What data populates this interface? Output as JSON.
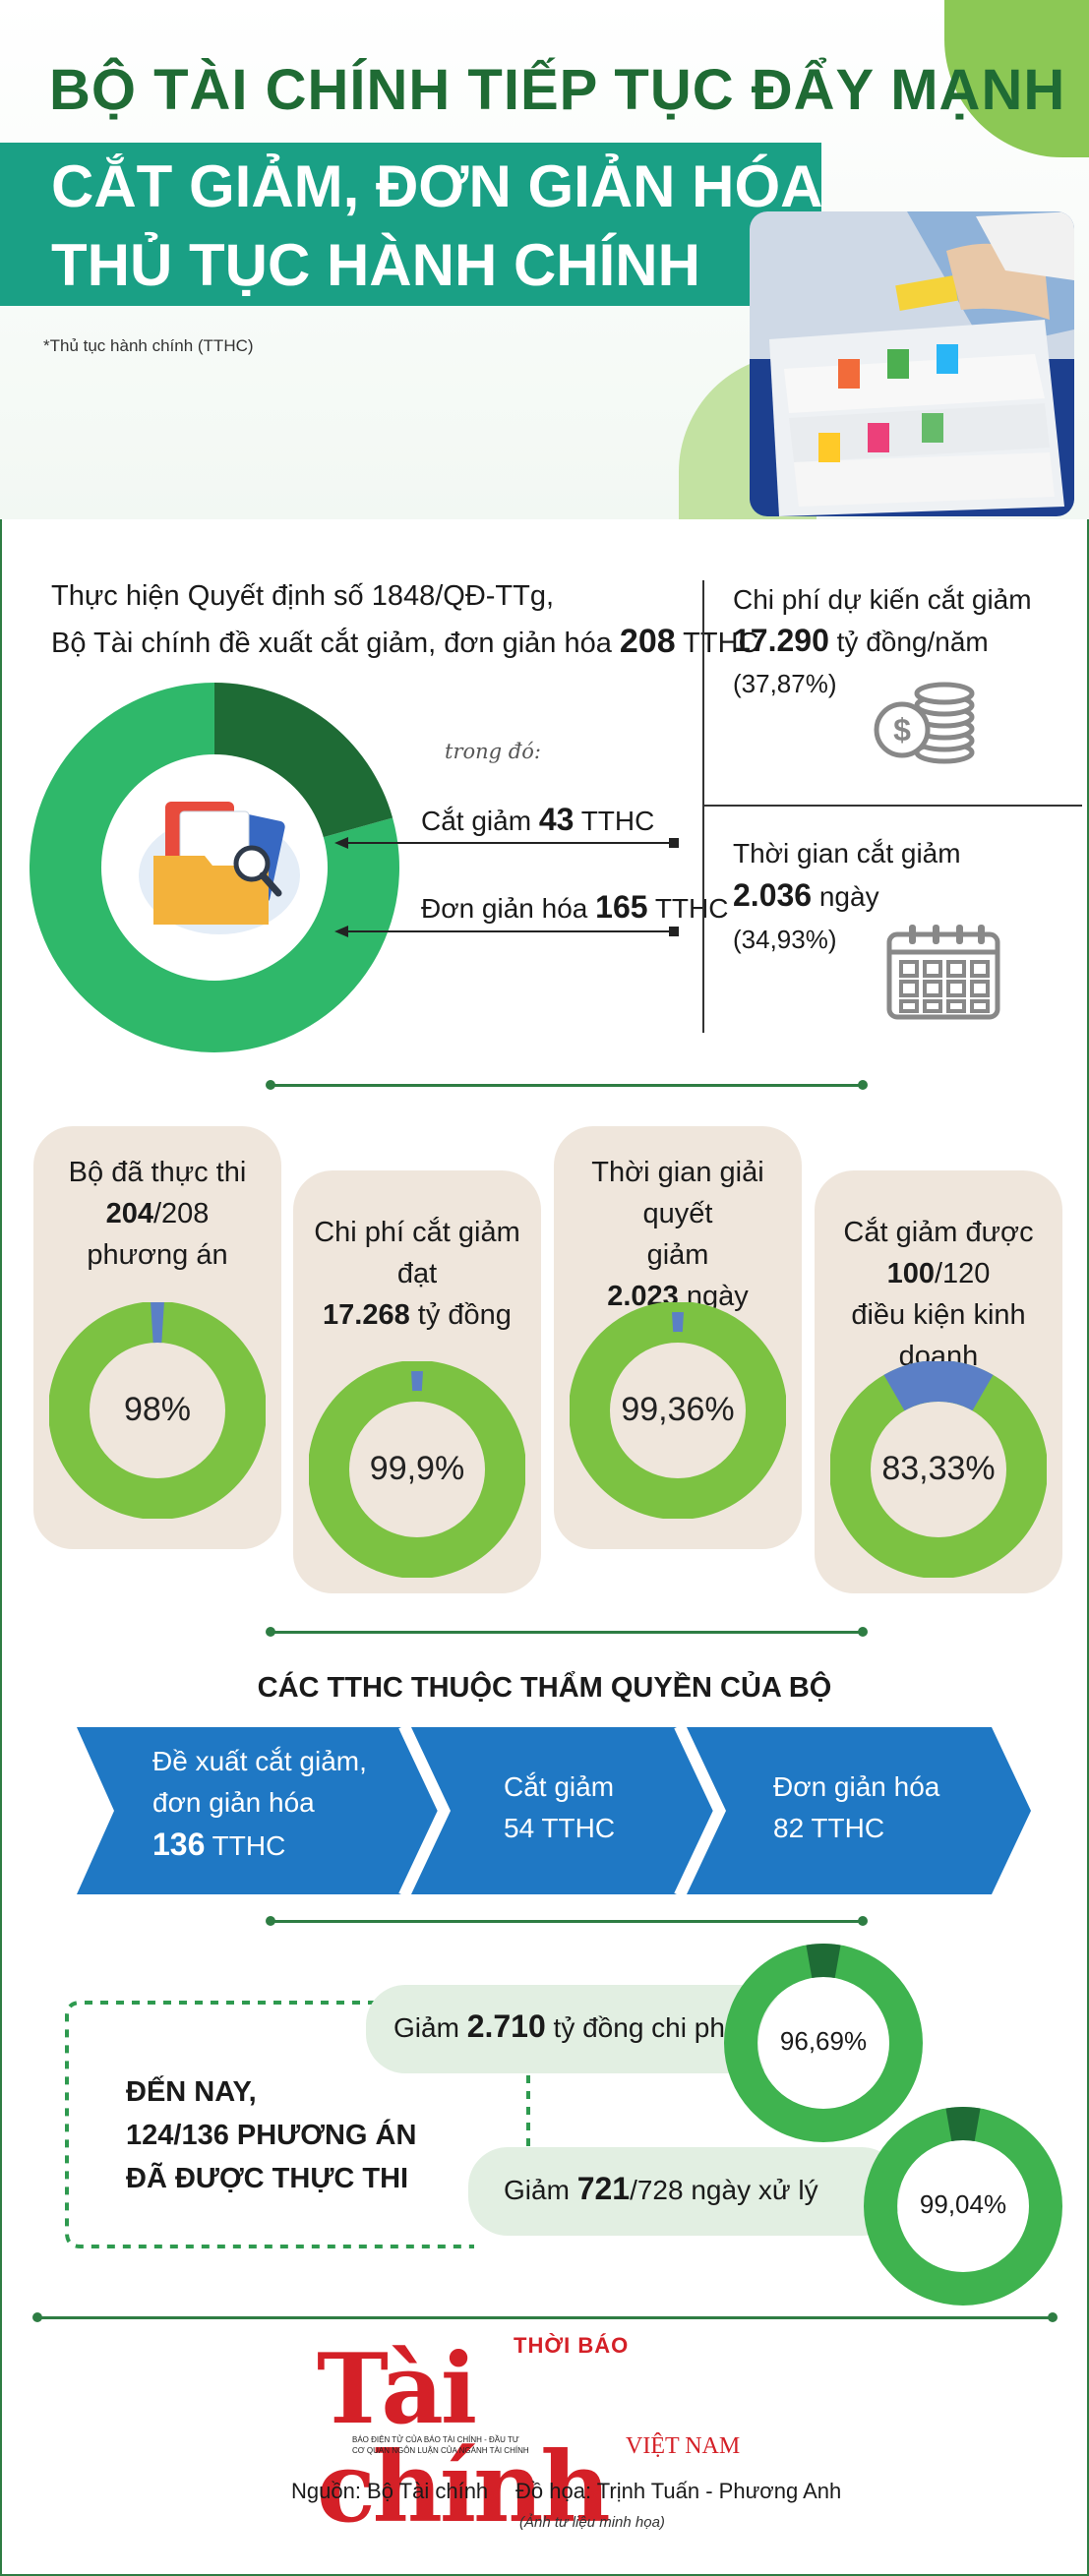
{
  "header": {
    "title_line1": "BỘ TÀI CHÍNH TIẾP TỤC ĐẨY MẠNH",
    "title_line2": "CẮT GIẢM, ĐƠN GIẢN HÓA",
    "title_line3": "THỦ TỤC HÀNH CHÍNH",
    "note": "*Thủ tục hành chính (TTHC)"
  },
  "proposal": {
    "line1": "Thực hiện Quyết định số 1848/QĐ-TTg,",
    "line2_pre": "Bộ Tài chính đề xuất cắt giảm, đơn giản hóa ",
    "line2_num": "208",
    "line2_post": " TTHC",
    "trong_do": "trong đó:",
    "cut_pre": "Cắt giảm ",
    "cut_num": "43",
    "cut_post": " TTHC",
    "simplify_pre": "Đơn giản hóa ",
    "simplify_num": "165",
    "simplify_post": " TTHC",
    "donut": {
      "cut": 43,
      "simplify": 165,
      "total": 208
    },
    "colors": {
      "cut": "#1e6b35",
      "simplify": "#2fb86a"
    }
  },
  "savings": {
    "cost_label": "Chi phí dự kiến cắt giảm",
    "cost_value": "17.290",
    "cost_unit": " tỷ đồng/năm",
    "cost_pct": "(37,87%)",
    "time_label": "Thời gian cắt giảm",
    "time_value": "2.036",
    "time_unit": " ngày",
    "time_pct": "(34,93%)"
  },
  "cards": [
    {
      "l1": "Bộ đã thực thi",
      "num": "204",
      "rest": "/208",
      "l3": "phương án",
      "pct": "98%",
      "ratio": 0.98
    },
    {
      "l1": "Chi phí cắt giảm",
      "l2": "đạt",
      "num": "17.268",
      "rest": " tỷ đồng",
      "pct": "99,9%",
      "ratio": 0.999
    },
    {
      "l1": "Thời gian giải quyết",
      "l2": "giảm",
      "num": "2.023",
      "rest": " ngày",
      "pct": "99,36%",
      "ratio": 0.9936
    },
    {
      "l1": "Cắt giảm được",
      "num": "100",
      "rest": "/120",
      "l3": "điều kiện kinh doanh",
      "pct": "83,33%",
      "ratio": 0.8333
    }
  ],
  "ring_colors": {
    "done": "#7cc242",
    "rest": "#5b7fc6"
  },
  "ministry": {
    "heading": "CÁC TTHC THUỘC THẨM QUYỀN CỦA BỘ",
    "step1_l1": "Đề xuất cắt giảm,",
    "step1_l2": "đơn giản hóa",
    "step1_num": "136",
    "step1_unit": " TTHC",
    "step2_l1": "Cắt giảm",
    "step2_l2": "54 TTHC",
    "step3_l1": "Đơn giản hóa",
    "step3_l2": "82 TTHC",
    "chevron_color": "#1f78c4"
  },
  "progress": {
    "l1": "ĐẾN NAY,",
    "l2": "124/136 PHƯƠNG ÁN",
    "l3": "ĐÃ ĐƯỢC THỰC THI",
    "cost_pre": "Giảm ",
    "cost_num": "2.710",
    "cost_post": " tỷ đồng chi phí",
    "cost_pct": "96,69%",
    "cost_ratio": 0.9669,
    "day_pre": "Giảm ",
    "day_num": "721",
    "day_post": "/728 ngày xử lý",
    "day_pct": "99,04%",
    "day_ratio": 0.9904
  },
  "footer": {
    "logo_top": "THỜI BÁO",
    "logo_main": "Tài chính",
    "logo_sub": "VIỆT NAM",
    "logo_small1": "BÁO ĐIỆN TỬ CỦA BÁO TÀI CHÍNH - ĐẦU TƯ",
    "logo_small2": "CƠ QUAN NGÔN LUẬN CỦA NGÀNH TÀI CHÍNH",
    "source": "Nguồn: Bộ Tài chính",
    "graphics": "Đồ họa: Trịnh Tuấn - Phương Anh",
    "photo_note": "(Ảnh tư liệu minh họa)"
  }
}
